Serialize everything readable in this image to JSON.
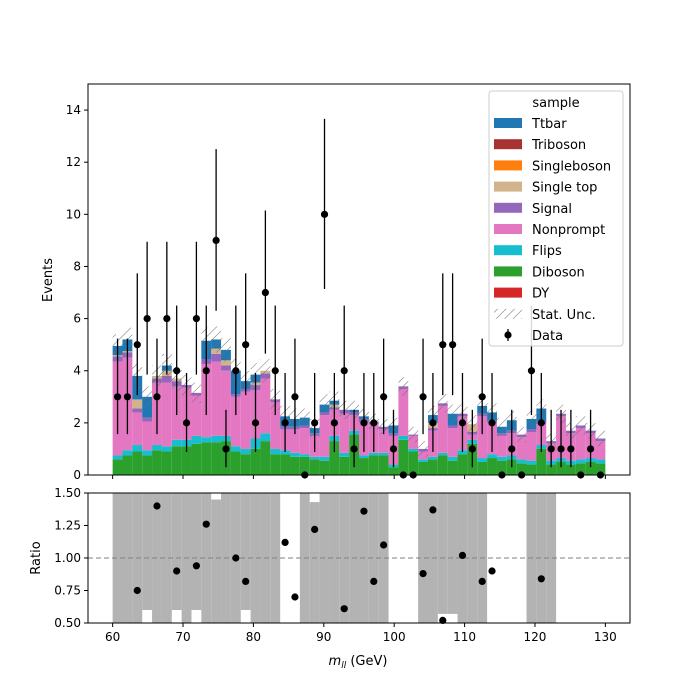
{
  "chart_data": [
    {
      "type": "stacked-bar",
      "ylabel": "Events",
      "ylim": [
        0,
        15
      ],
      "yticks": [
        0,
        2,
        4,
        6,
        8,
        10,
        12,
        14
      ],
      "xlim": [
        56.5,
        133.5
      ],
      "bin_start": 60,
      "bin_width": 1.4,
      "n_bins": 50,
      "legend": {
        "title": "sample",
        "placement": "top-right",
        "entries": [
          "Ttbar",
          "Triboson",
          "Singleboson",
          "Single top",
          "Signal",
          "Nonprompt",
          "Flips",
          "Diboson",
          "DY",
          "Stat. Unc.",
          "Data"
        ]
      },
      "colors": {
        "Ttbar": "#1f77b4",
        "Triboson": "#a83232",
        "Singleboson": "#ff7f0e",
        "Single top": "#d2b48c",
        "Signal": "#9467bd",
        "Nonprompt": "#e377c2",
        "Flips": "#17becf",
        "Diboson": "#2ca02c",
        "DY": "#d62728"
      },
      "stack_order": [
        "Diboson",
        "Flips",
        "Nonprompt",
        "Signal",
        "Single top",
        "Ttbar"
      ],
      "stack": {
        "Diboson": [
          0.6,
          0.75,
          0.9,
          0.75,
          0.95,
          0.9,
          1.1,
          1.1,
          1.2,
          1.25,
          1.25,
          1.3,
          0.9,
          0.8,
          1.0,
          1.3,
          0.8,
          0.8,
          0.7,
          0.7,
          0.6,
          0.55,
          1.3,
          0.7,
          1.55,
          0.65,
          0.75,
          0.75,
          0.3,
          1.35,
          0.9,
          0.5,
          0.6,
          0.75,
          0.55,
          0.8,
          1.2,
          0.5,
          0.65,
          0.55,
          0.6,
          0.45,
          0.4,
          1.0,
          0.4,
          0.5,
          0.4,
          0.45,
          0.5,
          0.45
        ],
        "Flips": [
          0.15,
          0.2,
          0.25,
          0.2,
          0.2,
          0.2,
          0.25,
          0.25,
          0.3,
          0.2,
          0.25,
          0.2,
          0.2,
          0.2,
          0.4,
          0.3,
          0.2,
          0.15,
          0.15,
          0.1,
          0.1,
          0.15,
          0.2,
          0.15,
          0.15,
          0.1,
          0.1,
          0.1,
          0.1,
          0.15,
          0.1,
          0.1,
          0.1,
          0.1,
          0.15,
          0.15,
          0.15,
          0.15,
          0.15,
          0.15,
          0.15,
          0.15,
          0.15,
          0.15,
          0.15,
          0.15,
          0.15,
          0.15,
          0.15,
          0.15
        ],
        "Nonprompt": [
          3.6,
          3.55,
          1.25,
          1.1,
          2.4,
          2.45,
          2.05,
          2.0,
          1.55,
          2.8,
          2.85,
          2.5,
          1.9,
          2.2,
          1.85,
          2.1,
          1.8,
          0.8,
          0.9,
          1.0,
          0.8,
          1.6,
          1.0,
          1.5,
          0.6,
          1.3,
          1.1,
          0.9,
          1.1,
          1.8,
          0.5,
          0.3,
          1.0,
          1.8,
          1.1,
          1.3,
          0.2,
          1.6,
          1.2,
          0.8,
          0.85,
          0.85,
          1.1,
          0.8,
          0.65,
          1.6,
          1.05,
          1.2,
          0.95,
          0.7
        ],
        "Signal": [
          0.2,
          0.2,
          0.15,
          0.15,
          0.15,
          0.25,
          0.2,
          0.1,
          0.1,
          0.2,
          0.3,
          0.2,
          0.1,
          0.1,
          0.2,
          0.2,
          0.1,
          0.1,
          0.1,
          0.1,
          0.1,
          0.1,
          0.1,
          0.15,
          0.1,
          0.1,
          0.1,
          0.1,
          0.1,
          0.1,
          0.05,
          0.1,
          0.1,
          0.1,
          0.1,
          0.1,
          0.1,
          0.1,
          0.1,
          0.1,
          0.1,
          0.1,
          0.1,
          0.1,
          0.1,
          0.1,
          0.1,
          0.1,
          0.1,
          0.1
        ],
        "Single top": [
          0.05,
          0.05,
          0.35,
          0.0,
          0.1,
          0.2,
          0.1,
          0.0,
          0.0,
          0.0,
          0.2,
          0.2,
          0.0,
          0.0,
          0.1,
          0.1,
          0.0,
          0.0,
          0.0,
          0.0,
          0.0,
          0.0,
          0.1,
          0.0,
          0.0,
          0.0,
          0.0,
          0.0,
          0.0,
          0.0,
          0.0,
          0.0,
          0.2,
          0.0,
          0.0,
          0.0,
          0.3,
          0.0,
          0.0,
          0.0,
          0.0,
          0.0,
          0.0,
          0.0,
          0.0,
          0.0,
          0.0,
          0.0,
          0.0,
          0.0
        ],
        "Ttbar": [
          0.35,
          0.45,
          0.9,
          0.8,
          0.0,
          0.2,
          0.0,
          0.0,
          0.0,
          0.7,
          0.35,
          0.4,
          0.9,
          0.3,
          0.3,
          0.0,
          0.0,
          0.4,
          0.3,
          0.3,
          0.2,
          0.3,
          0.15,
          0.0,
          0.1,
          0.1,
          0.0,
          0.0,
          0.3,
          0.0,
          0.0,
          0.0,
          0.3,
          0.0,
          0.45,
          0.0,
          0.0,
          0.3,
          0.3,
          0.25,
          0.4,
          0.0,
          0.4,
          0.5,
          0.0,
          0.0,
          0.0,
          0.0,
          0.0,
          0.0
        ]
      },
      "stat_unc": [
        0.45,
        0.45,
        0.45,
        0.4,
        0.4,
        0.45,
        0.45,
        0.4,
        0.4,
        0.5,
        0.5,
        0.45,
        0.45,
        0.4,
        0.45,
        0.45,
        0.4,
        0.4,
        0.4,
        0.35,
        0.35,
        0.4,
        0.35,
        0.35,
        0.35,
        0.3,
        0.3,
        0.3,
        0.3,
        0.35,
        0.3,
        0.3,
        0.35,
        0.35,
        0.35,
        0.35,
        0.35,
        0.35,
        0.35,
        0.35,
        0.35,
        0.3,
        0.35,
        0.35,
        0.3,
        0.35,
        0.3,
        0.35,
        0.3,
        0.3
      ],
      "data": {
        "x": [
          60.7,
          62.1,
          63.5,
          64.9,
          66.3,
          67.7,
          69.1,
          70.5,
          71.9,
          73.3,
          74.7,
          76.1,
          77.5,
          78.9,
          80.3,
          81.7,
          83.1,
          84.5,
          85.9,
          87.3,
          88.7,
          90.1,
          91.5,
          92.9,
          94.3,
          95.7,
          97.1,
          98.5,
          99.9,
          101.3,
          102.7,
          104.1,
          105.5,
          106.9,
          108.3,
          109.7,
          111.1,
          112.5,
          113.9,
          115.3,
          116.7,
          118.1,
          119.5,
          120.9,
          122.3,
          123.7,
          125.1,
          126.5,
          127.9,
          129.3
        ],
        "y": [
          3,
          3,
          5,
          6,
          3,
          6,
          4,
          2,
          6,
          4,
          9,
          1,
          4,
          5,
          2,
          7,
          4,
          2,
          3,
          0,
          2,
          10,
          2,
          4,
          1,
          2,
          2,
          3,
          1,
          0,
          0,
          3,
          2,
          5,
          5,
          2,
          1,
          3,
          2,
          0,
          1,
          0,
          4,
          2,
          1,
          1,
          1,
          0,
          1,
          0
        ]
      }
    },
    {
      "type": "scatter",
      "ylabel": "Ratio",
      "xlabel": "m_{ll} (GeV)",
      "ylim": [
        0.5,
        1.5
      ],
      "yticks": [
        "0.50",
        "0.75",
        "1.00",
        "1.25",
        "1.50"
      ],
      "xticks": [
        60,
        70,
        80,
        90,
        100,
        110,
        120,
        130
      ],
      "reference_line": 1.0,
      "x": [
        63.5,
        66.3,
        69.1,
        71.9,
        73.3,
        77.5,
        78.9,
        84.5,
        85.9,
        88.7,
        92.9,
        95.7,
        97.1,
        98.5,
        104.1,
        105.5,
        106.9,
        109.7,
        112.5,
        113.9,
        120.9
      ],
      "y": [
        0.75,
        1.4,
        0.9,
        0.94,
        1.26,
        1.0,
        0.82,
        1.12,
        0.7,
        1.22,
        0.61,
        1.36,
        0.82,
        1.1,
        0.88,
        1.37,
        0.52,
        1.02,
        0.82,
        0.9,
        0.84
      ],
      "band": {
        "color": "#b3b3b3",
        "bin_low": [
          0.5,
          0.5,
          0.5,
          0.6,
          0.5,
          0.5,
          0.6,
          0.5,
          0.6,
          0.5,
          0.5,
          0.5,
          0.5,
          0.6,
          0.5,
          0.5,
          0.5,
          0.5,
          0.5,
          0.5,
          0.5,
          0.5,
          0.5,
          0.5,
          0.5,
          0.5,
          0.5,
          0.5,
          0.5,
          0.5,
          0.5,
          0.5,
          0.5,
          0.57,
          0.57,
          0.5,
          0.5,
          0.5,
          0.5,
          0.5,
          0.5,
          0.5,
          0.5,
          0.5,
          0.5,
          0.5,
          0.5,
          0.5,
          0.5,
          0.5
        ],
        "bin_high": [
          1.5,
          1.5,
          1.5,
          1.5,
          1.5,
          1.5,
          1.5,
          1.5,
          1.5,
          1.5,
          1.45,
          1.5,
          1.5,
          1.5,
          1.5,
          1.5,
          1.5,
          0,
          0,
          1.5,
          1.43,
          1.5,
          1.5,
          1.5,
          1.5,
          1.5,
          1.5,
          1.5,
          0,
          0,
          0,
          1.5,
          1.5,
          1.5,
          1.5,
          1.5,
          1.5,
          1.5,
          0,
          0,
          0,
          0,
          1.5,
          1.5,
          1.5,
          0,
          0,
          0,
          0,
          0
        ]
      }
    }
  ]
}
